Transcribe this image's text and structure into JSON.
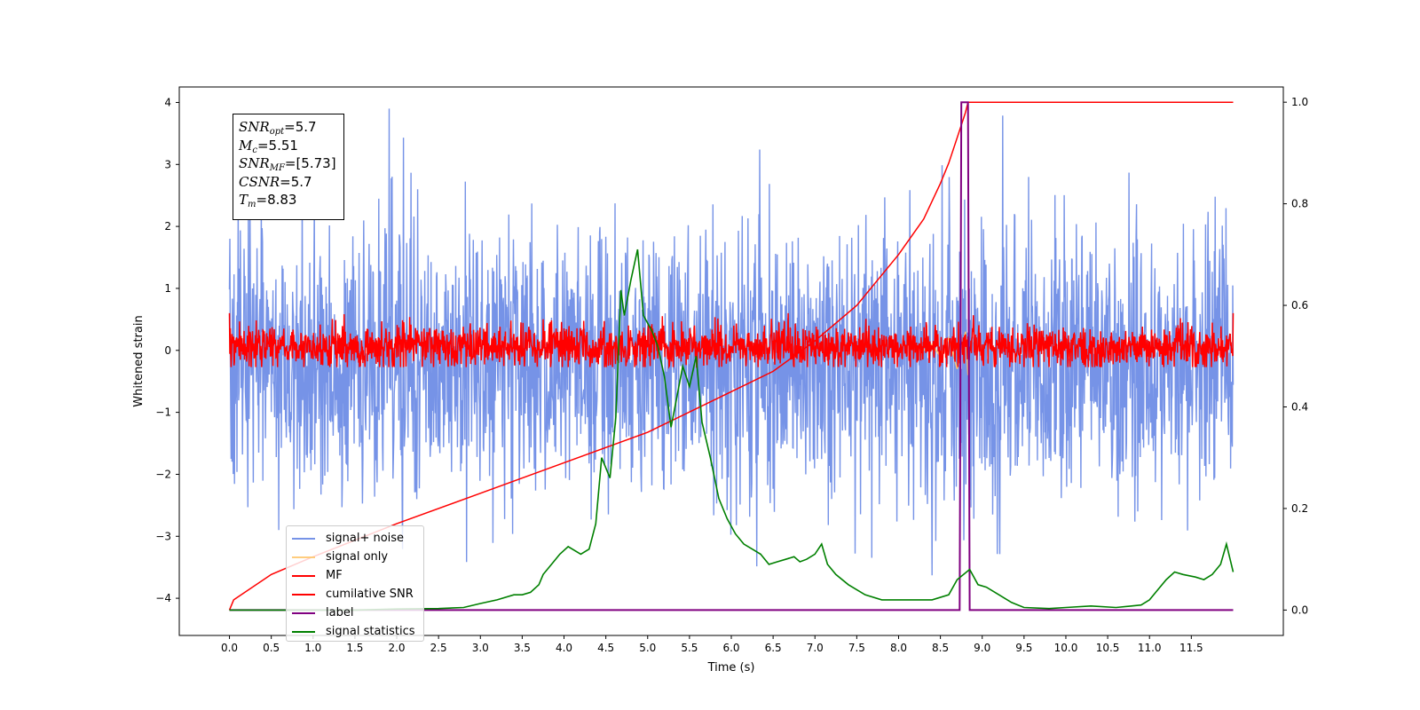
{
  "annotation": {
    "snr_opt": {
      "symbol": "SNR",
      "sub": "opt",
      "value": "=5.7"
    },
    "mc": {
      "symbol": "M",
      "sub": "c",
      "value": "=5.51"
    },
    "snr_mf": {
      "symbol": "SNR",
      "sub": "MF",
      "value": "=[5.73]"
    },
    "csnr": {
      "symbol": "CSNR",
      "sub": "",
      "value": "=5.7"
    },
    "tm": {
      "symbol": "T",
      "sub": "m",
      "value": "=8.83"
    }
  },
  "chart_data": {
    "type": "line",
    "xlabel": "Time (s)",
    "ylabel": "Whitened strain",
    "xlim": [
      -0.6,
      12.6
    ],
    "ylim": [
      -4.6,
      4.25
    ],
    "y2lim": [
      -0.05,
      1.03
    ],
    "xticks": [
      "0.0",
      "0.5",
      "1.0",
      "1.5",
      "2.0",
      "2.5",
      "3.0",
      "3.5",
      "4.0",
      "4.5",
      "5.0",
      "5.5",
      "6.0",
      "6.5",
      "7.0",
      "7.5",
      "8.0",
      "8.5",
      "9.0",
      "9.5",
      "10.0",
      "10.5",
      "11.0",
      "11.5"
    ],
    "yticks": [
      "4",
      "3",
      "2",
      "1",
      "0",
      "−1",
      "−2",
      "−3",
      "−4"
    ],
    "y2ticks": [
      "1.0",
      "0.8",
      "0.6",
      "0.4",
      "0.2",
      "0.0"
    ],
    "legend_location": "lower-left",
    "colors": {
      "signal_noise": "#6f8de6",
      "signal_only": "#ffc870",
      "mf": "#ff0000",
      "cumulative_snr": "#ff0000",
      "label": "#800080",
      "signal_statistics": "#008000"
    },
    "series": [
      {
        "name": "signal+ noise",
        "axis": "left",
        "kind": "noise",
        "description_values": {
          "x_range": [
            0,
            12
          ],
          "mean": -0.2,
          "typical_range": [
            -2.8,
            2.4
          ],
          "max": 3.9,
          "min": -4.15
        }
      },
      {
        "name": "signal only",
        "axis": "left",
        "kind": "chirp",
        "x": [
          8.3,
          8.4,
          8.5,
          8.6,
          8.7,
          8.8,
          8.83
        ],
        "y": [
          0.0,
          0.1,
          -0.1,
          0.2,
          -0.3,
          0.3,
          -0.4
        ]
      },
      {
        "name": "MF",
        "axis": "left",
        "kind": "noise",
        "description_values": {
          "x_range": [
            0,
            12
          ],
          "mean": 0.0,
          "typical_range": [
            -0.25,
            0.55
          ],
          "start": 1.0
        }
      },
      {
        "name": "cumilative SNR",
        "axis": "right",
        "x": [
          0,
          0.05,
          0.5,
          1.0,
          2.0,
          3.0,
          4.0,
          5.0,
          6.0,
          6.5,
          7.0,
          7.5,
          8.0,
          8.3,
          8.5,
          8.6,
          8.7,
          8.8,
          8.83,
          9.0,
          10.0,
          11.0,
          12.0
        ],
        "y": [
          0.0,
          0.02,
          0.07,
          0.105,
          0.17,
          0.23,
          0.29,
          0.35,
          0.43,
          0.47,
          0.53,
          0.6,
          0.7,
          0.77,
          0.84,
          0.88,
          0.93,
          0.98,
          1.0,
          1.0,
          1.0,
          1.0,
          1.0
        ]
      },
      {
        "name": "label",
        "axis": "right",
        "x": [
          0,
          8.73,
          8.75,
          8.83,
          8.85,
          12.0
        ],
        "y": [
          0.0,
          0.0,
          1.0,
          1.0,
          0.0,
          0.0
        ]
      },
      {
        "name": "signal statistics",
        "axis": "right",
        "x": [
          0.0,
          0.5,
          1.0,
          1.5,
          2.0,
          2.5,
          2.8,
          3.0,
          3.2,
          3.4,
          3.5,
          3.6,
          3.7,
          3.75,
          3.85,
          3.95,
          4.05,
          4.2,
          4.3,
          4.38,
          4.45,
          4.55,
          4.62,
          4.68,
          4.72,
          4.8,
          4.88,
          4.95,
          5.05,
          5.12,
          5.2,
          5.28,
          5.35,
          5.42,
          5.5,
          5.58,
          5.65,
          5.75,
          5.85,
          5.95,
          6.05,
          6.15,
          6.25,
          6.35,
          6.45,
          6.55,
          6.65,
          6.75,
          6.82,
          6.9,
          7.0,
          7.08,
          7.15,
          7.25,
          7.4,
          7.6,
          7.8,
          8.0,
          8.2,
          8.4,
          8.6,
          8.7,
          8.85,
          8.95,
          9.05,
          9.2,
          9.35,
          9.5,
          9.8,
          10.0,
          10.3,
          10.6,
          10.9,
          11.0,
          11.1,
          11.2,
          11.3,
          11.4,
          11.55,
          11.65,
          11.75,
          11.85,
          11.92,
          12.0
        ],
        "y": [
          0.0,
          0.0,
          0.0,
          0.0,
          0.002,
          0.003,
          0.005,
          0.013,
          0.02,
          0.03,
          0.03,
          0.035,
          0.05,
          0.07,
          0.09,
          0.11,
          0.125,
          0.11,
          0.12,
          0.17,
          0.3,
          0.26,
          0.38,
          0.63,
          0.58,
          0.65,
          0.71,
          0.58,
          0.55,
          0.52,
          0.46,
          0.36,
          0.42,
          0.48,
          0.44,
          0.5,
          0.37,
          0.3,
          0.22,
          0.18,
          0.15,
          0.13,
          0.12,
          0.11,
          0.09,
          0.095,
          0.1,
          0.105,
          0.095,
          0.1,
          0.11,
          0.13,
          0.09,
          0.07,
          0.05,
          0.03,
          0.02,
          0.02,
          0.02,
          0.02,
          0.03,
          0.06,
          0.08,
          0.05,
          0.045,
          0.03,
          0.015,
          0.005,
          0.003,
          0.005,
          0.008,
          0.005,
          0.01,
          0.02,
          0.04,
          0.06,
          0.075,
          0.07,
          0.065,
          0.06,
          0.07,
          0.09,
          0.13,
          0.075
        ]
      }
    ]
  }
}
